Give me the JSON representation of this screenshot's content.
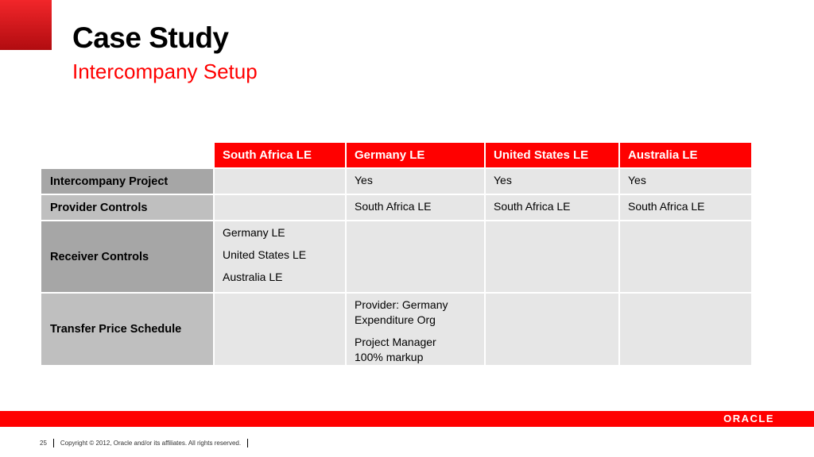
{
  "slide": {
    "title": "Case Study",
    "subtitle": "Intercompany Setup",
    "accent_color": "#ff0000"
  },
  "table": {
    "columns": [
      "South Africa LE",
      "Germany LE",
      "United States LE",
      "Australia LE"
    ],
    "rows": [
      {
        "label": "Intercompany Project",
        "cells": [
          [],
          [
            "Yes"
          ],
          [
            "Yes"
          ],
          [
            "Yes"
          ]
        ]
      },
      {
        "label": "Provider Controls",
        "cells": [
          [],
          [
            "South Africa LE"
          ],
          [
            "South Africa LE"
          ],
          [
            "South Africa LE"
          ]
        ]
      },
      {
        "label": "Receiver Controls",
        "cells": [
          [
            "Germany LE",
            "United States LE",
            "Australia LE"
          ],
          [],
          [],
          []
        ]
      },
      {
        "label": "Transfer Price Schedule",
        "cells": [
          [],
          [
            "Provider: Germany Expenditure Org",
            "Project Manager 100% markup"
          ],
          [],
          []
        ]
      }
    ]
  },
  "footer": {
    "page_number": "25",
    "copyright": "Copyright © 2012, Oracle and/or its affiliates. All rights reserved.",
    "logo_text": "ORACLE"
  }
}
